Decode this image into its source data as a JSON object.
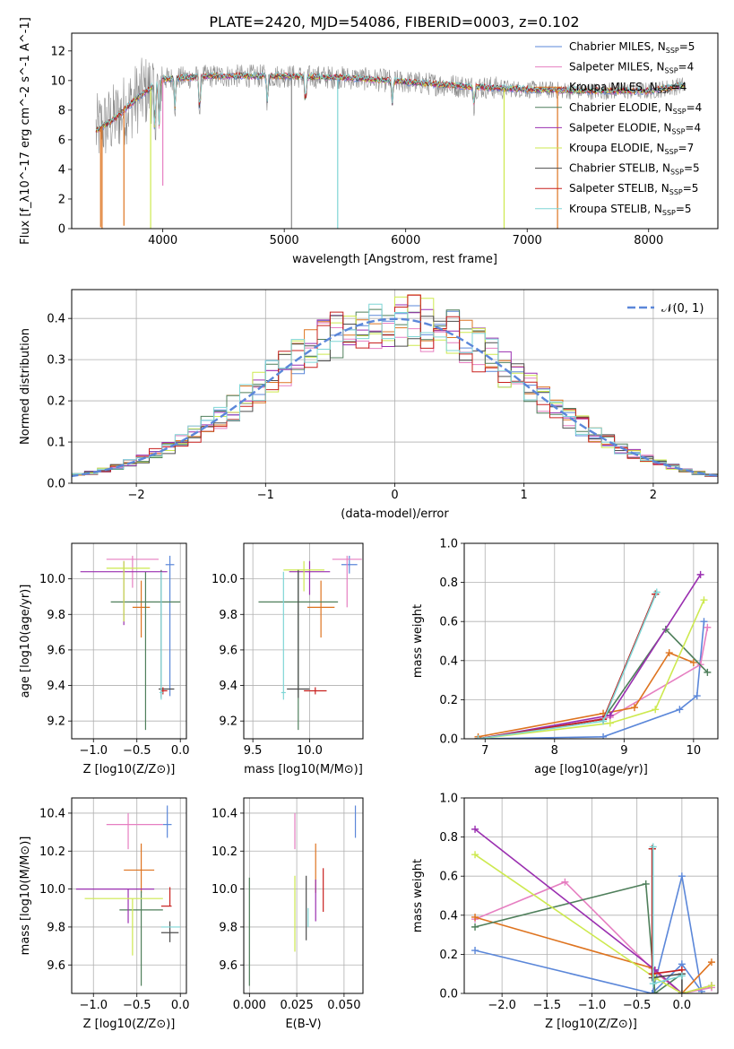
{
  "figure": {
    "title": "PLATE=2420, MJD=54086, FIBERID=0003, z=0.102"
  },
  "colors": {
    "Chabrier MILES": "#5b87d9",
    "Salpeter MILES": "#e67fc1",
    "Kroupa MILES": "#de7420",
    "Chabrier ELODIE": "#4f7f5b",
    "Salpeter ELODIE": "#9a2fb0",
    "Kroupa ELODIE": "#cde94f",
    "Chabrier STELIB": "#4d4d4d",
    "Salpeter STELIB": "#c8201e",
    "Kroupa STELIB": "#7fd6d6",
    "data": "#8a8a8a",
    "normal_curve": "#5b87d9"
  },
  "chart_data": [
    {
      "id": "spectrum",
      "type": "line",
      "xlabel": "wavelength [Angstrom, rest frame]",
      "ylabel": "Flux [f_λ10^-17 erg cm^-2 s^-1 A^-1]",
      "xlim": [
        3250,
        8570
      ],
      "ylim": [
        0,
        13.2
      ],
      "xticks": [
        4000,
        5000,
        6000,
        7000,
        8000
      ],
      "yticks": [
        0,
        2,
        4,
        6,
        8,
        10,
        12
      ],
      "legend_position": "top-right",
      "legend": [
        {
          "base": "Chabrier MILES, N",
          "sub": "SSP",
          "tail": "=5"
        },
        {
          "base": "Salpeter MILES, N",
          "sub": "SSP",
          "tail": "=4"
        },
        {
          "base": "Kroupa MILES, N",
          "sub": "SSP",
          "tail": "=4"
        },
        {
          "base": "Chabrier ELODIE, N",
          "sub": "SSP",
          "tail": "=4"
        },
        {
          "base": "Salpeter ELODIE, N",
          "sub": "SSP",
          "tail": "=4"
        },
        {
          "base": "Kroupa ELODIE, N",
          "sub": "SSP",
          "tail": "=7"
        },
        {
          "base": "Chabrier STELIB, N",
          "sub": "SSP",
          "tail": "=5"
        },
        {
          "base": "Salpeter STELIB, N",
          "sub": "SSP",
          "tail": "=5"
        },
        {
          "base": "Kroupa STELIB, N",
          "sub": "SSP",
          "tail": "=5"
        }
      ],
      "continuum": {
        "x": [
          3450,
          3600,
          3800,
          4000,
          4400,
          5000,
          5500,
          6000,
          6500,
          7000,
          7500,
          8000,
          8300
        ],
        "y": [
          6.6,
          7.4,
          8.9,
          10.1,
          10.3,
          10.3,
          10.2,
          9.9,
          9.6,
          9.4,
          9.3,
          9.3,
          9.7
        ]
      },
      "absorption_lines": [
        {
          "x": 3934,
          "depth": 3.5
        },
        {
          "x": 3969,
          "depth": 3.0
        },
        {
          "x": 4101,
          "depth": 2.0
        },
        {
          "x": 4304,
          "depth": 2.5
        },
        {
          "x": 4861,
          "depth": 1.8
        },
        {
          "x": 5175,
          "depth": 2.0
        },
        {
          "x": 5890,
          "depth": 1.5
        },
        {
          "x": 6563,
          "depth": 1.2
        }
      ],
      "spikes": [
        {
          "x": 3488,
          "y": 0.1
        },
        {
          "x": 3500,
          "y": 0.0
        },
        {
          "x": 3680,
          "y": 0.2
        },
        {
          "x": 3900,
          "y": 0.0
        },
        {
          "x": 4000,
          "y": 2.9
        },
        {
          "x": 5440,
          "y": 0.0
        },
        {
          "x": 5060,
          "y": 0.0
        },
        {
          "x": 6810,
          "y": 0.0
        },
        {
          "x": 7250,
          "y": 0.0
        }
      ]
    },
    {
      "id": "residuals",
      "type": "line",
      "xlabel": "(data-model)/error",
      "ylabel": "Normed distribution",
      "xlim": [
        -2.5,
        2.5
      ],
      "ylim": [
        0,
        0.47
      ],
      "xticks": [
        -2,
        -1,
        0,
        1,
        2
      ],
      "yticks": [
        0.0,
        0.1,
        0.2,
        0.3,
        0.4
      ],
      "grid": true,
      "legend_position": "top-right",
      "legend": "𝒩(0, 1)",
      "bin_width": 0.1
    },
    {
      "id": "age_vs_Z",
      "type": "scatter",
      "xlabel": "Z [log10(Z/Z⊙)]",
      "ylabel": "age  [log10(age/yr)]",
      "xlim": [
        -1.25,
        0.07
      ],
      "ylim": [
        9.1,
        10.2
      ],
      "xticks": [
        -1.0,
        -0.5,
        0.0
      ],
      "yticks": [
        9.2,
        9.4,
        9.6,
        9.8,
        10.0
      ],
      "grid": true,
      "points": [
        {
          "model": "Chabrier MILES",
          "x": -0.12,
          "xerr": [
            0.05,
            0.05
          ],
          "y": 10.08,
          "yerr": [
            0.74,
            0.05
          ]
        },
        {
          "model": "Salpeter MILES",
          "x": -0.55,
          "xerr": [
            0.3,
            0.3
          ],
          "y": 10.11,
          "yerr": [
            0.16,
            0.02
          ]
        },
        {
          "model": "Kroupa MILES",
          "x": -0.45,
          "xerr": [
            0.1,
            0.1
          ],
          "y": 9.84,
          "yerr": [
            0.17,
            0.15
          ]
        },
        {
          "model": "Chabrier ELODIE",
          "x": -0.4,
          "xerr": [
            0.4,
            0.4
          ],
          "y": 9.87,
          "yerr": [
            0.72,
            0.17
          ]
        },
        {
          "model": "Salpeter ELODIE",
          "x": -0.65,
          "xerr": [
            0.5,
            0.5
          ],
          "y": 10.04,
          "yerr": [
            0.3,
            0.06
          ]
        },
        {
          "model": "Kroupa ELODIE",
          "x": -0.65,
          "xerr": [
            0.2,
            0.3
          ],
          "y": 10.06,
          "yerr": [
            0.3,
            0.04
          ]
        },
        {
          "model": "Chabrier STELIB",
          "x": -0.22,
          "xerr": [
            0.03,
            0.15
          ],
          "y": 9.38,
          "yerr": [
            0.05,
            0.67
          ]
        },
        {
          "model": "Salpeter STELIB",
          "x": -0.2,
          "xerr": [
            0.02,
            0.05
          ],
          "y": 9.37,
          "yerr": [
            0.02,
            0.02
          ]
        },
        {
          "model": "Kroupa STELIB",
          "x": -0.22,
          "xerr": [
            0.02,
            0.02
          ],
          "y": 9.36,
          "yerr": [
            0.04,
            0.68
          ]
        }
      ]
    },
    {
      "id": "age_vs_mass",
      "type": "scatter",
      "xlabel": "mass [log10(M/M⊙)]",
      "ylabel": "",
      "xlim": [
        9.42,
        10.47
      ],
      "ylim": [
        9.1,
        10.2
      ],
      "xticks": [
        9.5,
        10.0
      ],
      "yticks": [
        9.2,
        9.4,
        9.6,
        9.8,
        10.0
      ],
      "grid": true,
      "points": [
        {
          "model": "Chabrier MILES",
          "x": 10.35,
          "xerr": [
            0.07,
            0.07
          ],
          "y": 10.08,
          "yerr": [
            0.05,
            0.05
          ]
        },
        {
          "model": "Salpeter MILES",
          "x": 10.33,
          "xerr": [
            0.13,
            0.13
          ],
          "y": 10.11,
          "yerr": [
            0.27,
            0.02
          ]
        },
        {
          "model": "Kroupa MILES",
          "x": 10.1,
          "xerr": [
            0.12,
            0.12
          ],
          "y": 9.84,
          "yerr": [
            0.17,
            0.15
          ]
        },
        {
          "model": "Chabrier ELODIE",
          "x": 9.9,
          "xerr": [
            0.35,
            0.35
          ],
          "y": 9.87,
          "yerr": [
            0.72,
            0.17
          ]
        },
        {
          "model": "Salpeter ELODIE",
          "x": 10.0,
          "xerr": [
            0.18,
            0.18
          ],
          "y": 10.04,
          "yerr": [
            0.13,
            0.06
          ]
        },
        {
          "model": "Kroupa ELODIE",
          "x": 9.95,
          "xerr": [
            0.18,
            0.18
          ],
          "y": 10.05,
          "yerr": [
            0.12,
            0.05
          ]
        },
        {
          "model": "Chabrier STELIB",
          "x": 9.9,
          "xerr": [
            0.1,
            0.1
          ],
          "y": 9.38,
          "yerr": [
            0.05,
            0.67
          ]
        },
        {
          "model": "Salpeter STELIB",
          "x": 10.05,
          "xerr": [
            0.1,
            0.1
          ],
          "y": 9.37,
          "yerr": [
            0.02,
            0.02
          ]
        },
        {
          "model": "Kroupa STELIB",
          "x": 9.77,
          "xerr": [
            0.02,
            0.02
          ],
          "y": 9.36,
          "yerr": [
            0.04,
            0.68
          ]
        }
      ]
    },
    {
      "id": "massweight_vs_age",
      "type": "line",
      "xlabel": "age  [log10(age/yr)]",
      "ylabel": "mass weight",
      "xlim": [
        6.7,
        10.35
      ],
      "ylim": [
        0,
        1.0
      ],
      "xticks": [
        7,
        8,
        9,
        10
      ],
      "yticks": [
        0.0,
        0.2,
        0.4,
        0.6,
        0.8,
        1.0
      ],
      "grid": true,
      "series": [
        {
          "model": "Chabrier MILES",
          "x": [
            6.9,
            8.7,
            9.8,
            10.05,
            10.15
          ],
          "y": [
            0.0,
            0.01,
            0.15,
            0.22,
            0.6
          ]
        },
        {
          "model": "Salpeter MILES",
          "x": [
            6.9,
            8.8,
            10.1,
            10.2
          ],
          "y": [
            0.0,
            0.11,
            0.38,
            0.57
          ]
        },
        {
          "model": "Kroupa MILES",
          "x": [
            6.9,
            8.7,
            9.15,
            9.65,
            10.0
          ],
          "y": [
            0.01,
            0.13,
            0.16,
            0.44,
            0.39
          ]
        },
        {
          "model": "Chabrier ELODIE",
          "x": [
            6.9,
            8.7,
            9.6,
            10.2
          ],
          "y": [
            0.0,
            0.1,
            0.56,
            0.34
          ]
        },
        {
          "model": "Salpeter ELODIE",
          "x": [
            6.9,
            8.8,
            10.1
          ],
          "y": [
            0.0,
            0.12,
            0.84
          ]
        },
        {
          "model": "Kroupa ELODIE",
          "x": [
            6.9,
            8.8,
            9.45,
            10.15
          ],
          "y": [
            0.0,
            0.08,
            0.15,
            0.71
          ]
        },
        {
          "model": "Chabrier STELIB",
          "x": [
            6.9,
            8.7,
            9.45
          ],
          "y": [
            0.0,
            0.1,
            0.74
          ]
        },
        {
          "model": "Salpeter STELIB",
          "x": [
            6.9,
            8.7,
            9.45
          ],
          "y": [
            0.0,
            0.1,
            0.74
          ]
        },
        {
          "model": "Kroupa STELIB",
          "x": [
            6.9,
            8.7,
            9.47
          ],
          "y": [
            0.0,
            0.09,
            0.75
          ]
        }
      ]
    },
    {
      "id": "mass_vs_Z",
      "type": "scatter",
      "xlabel": "Z [log10(Z/Z⊙)]",
      "ylabel": "mass [log10(M/M⊙)]",
      "xlim": [
        -1.25,
        0.07
      ],
      "ylim": [
        9.45,
        10.48
      ],
      "xticks": [
        -1.0,
        -0.5,
        0.0
      ],
      "yticks": [
        9.6,
        9.8,
        10.0,
        10.2,
        10.4
      ],
      "grid": true,
      "points": [
        {
          "model": "Chabrier MILES",
          "x": -0.15,
          "xerr": [
            0.05,
            0.05
          ],
          "y": 10.34,
          "yerr": [
            0.07,
            0.1
          ]
        },
        {
          "model": "Salpeter MILES",
          "x": -0.6,
          "xerr": [
            0.25,
            0.4
          ],
          "y": 10.34,
          "yerr": [
            0.13,
            0.06
          ]
        },
        {
          "model": "Kroupa MILES",
          "x": -0.45,
          "xerr": [
            0.2,
            0.15
          ],
          "y": 10.1,
          "yerr": [
            0.12,
            0.14
          ]
        },
        {
          "model": "Chabrier ELODIE",
          "x": -0.45,
          "xerr": [
            0.25,
            0.25
          ],
          "y": 9.89,
          "yerr": [
            0.4,
            0.1
          ]
        },
        {
          "model": "Salpeter ELODIE",
          "x": -0.6,
          "xerr": [
            0.6,
            0.3
          ],
          "y": 10.0,
          "yerr": [
            0.18,
            0.0
          ]
        },
        {
          "model": "Kroupa ELODIE",
          "x": -0.55,
          "xerr": [
            0.55,
            0.35
          ],
          "y": 9.95,
          "yerr": [
            0.3,
            0.0
          ]
        },
        {
          "model": "Chabrier STELIB",
          "x": -0.12,
          "xerr": [
            0.1,
            0.1
          ],
          "y": 9.77,
          "yerr": [
            0.05,
            0.06
          ]
        },
        {
          "model": "Salpeter STELIB",
          "x": -0.12,
          "xerr": [
            0.1,
            0.02
          ],
          "y": 9.91,
          "yerr": [
            0.0,
            0.1
          ]
        },
        {
          "model": "Kroupa STELIB",
          "x": -0.12,
          "xerr": [
            0.1,
            0.12
          ],
          "y": 9.8,
          "yerr": [
            0.0,
            0.0
          ]
        }
      ]
    },
    {
      "id": "mass_vs_ebv",
      "type": "scatter",
      "xlabel": "E(B-V)",
      "ylabel": "",
      "xlim": [
        -0.003,
        0.06
      ],
      "ylim": [
        9.45,
        10.48
      ],
      "xticks": [
        0.0,
        0.025,
        0.05
      ],
      "xticklabels": [
        "0.000",
        "0.025",
        "0.050"
      ],
      "yticks": [
        9.6,
        9.8,
        10.0,
        10.2,
        10.4
      ],
      "grid": true,
      "points": [
        {
          "model": "Chabrier MILES",
          "x": 0.056,
          "y": 10.34,
          "yerr": [
            0.07,
            0.1
          ]
        },
        {
          "model": "Salpeter MILES",
          "x": 0.024,
          "y": 10.34,
          "yerr": [
            0.13,
            0.06
          ]
        },
        {
          "model": "Kroupa MILES",
          "x": 0.035,
          "y": 10.1,
          "yerr": [
            0.12,
            0.14
          ]
        },
        {
          "model": "Chabrier ELODIE",
          "x": 0.0,
          "y": 9.77,
          "yerr": [
            0.28,
            0.29
          ]
        },
        {
          "model": "Salpeter ELODIE",
          "x": 0.035,
          "y": 9.95,
          "yerr": [
            0.12,
            0.1
          ]
        },
        {
          "model": "Kroupa ELODIE",
          "x": 0.024,
          "y": 9.97,
          "yerr": [
            0.3,
            0.1
          ]
        },
        {
          "model": "Chabrier STELIB",
          "x": 0.03,
          "y": 9.9,
          "yerr": [
            0.17,
            0.17
          ]
        },
        {
          "model": "Salpeter STELIB",
          "x": 0.039,
          "y": 10.0,
          "yerr": [
            0.12,
            0.11
          ]
        },
        {
          "model": "Kroupa STELIB",
          "x": 0.031,
          "y": 9.85,
          "yerr": [
            0.05,
            0.05
          ]
        }
      ]
    },
    {
      "id": "massweight_vs_Z",
      "type": "line",
      "xlabel": "Z [log10(Z/Z⊙)]",
      "ylabel": "mass weight",
      "xlim": [
        -2.42,
        0.4
      ],
      "ylim": [
        0,
        1.0
      ],
      "xticks": [
        -2.0,
        -1.5,
        -1.0,
        -0.5,
        0.0
      ],
      "yticks": [
        0.0,
        0.2,
        0.4,
        0.6,
        0.8,
        1.0
      ],
      "grid": true,
      "series": [
        {
          "model": "Chabrier MILES",
          "x": [
            -2.3,
            -0.33,
            0.0,
            0.22,
            0.0,
            -0.33
          ],
          "y": [
            0.22,
            0.0,
            0.6,
            0.01,
            0.15,
            0.0
          ]
        },
        {
          "model": "Salpeter MILES",
          "x": [
            -2.3,
            -1.3,
            -0.3,
            0.0,
            0.33
          ],
          "y": [
            0.38,
            0.57,
            0.11,
            0.0,
            0.03
          ]
        },
        {
          "model": "Kroupa MILES",
          "x": [
            -2.3,
            -0.33,
            0.0,
            0.33
          ],
          "y": [
            0.39,
            0.13,
            0.0,
            0.16
          ]
        },
        {
          "model": "Chabrier ELODIE",
          "x": [
            -2.3,
            -0.4,
            -0.3,
            0.0
          ],
          "y": [
            0.34,
            0.56,
            0.0,
            0.1
          ]
        },
        {
          "model": "Salpeter ELODIE",
          "x": [
            -2.3,
            -0.3,
            0.0,
            0.33
          ],
          "y": [
            0.84,
            0.12,
            0.0,
            0.04
          ]
        },
        {
          "model": "Kroupa ELODIE",
          "x": [
            -2.3,
            -0.3,
            0.0,
            0.33
          ],
          "y": [
            0.71,
            0.08,
            0.0,
            0.04
          ]
        },
        {
          "model": "Chabrier STELIB",
          "x": [
            -0.33,
            -0.33,
            0.0,
            0.0
          ],
          "y": [
            0.74,
            0.08,
            0.1,
            0.0
          ]
        },
        {
          "model": "Salpeter STELIB",
          "x": [
            -0.33,
            -0.33,
            0.0
          ],
          "y": [
            0.74,
            0.1,
            0.12
          ]
        },
        {
          "model": "Kroupa STELIB",
          "x": [
            -0.32,
            -0.32,
            0.0
          ],
          "y": [
            0.75,
            0.05,
            0.09
          ]
        }
      ]
    }
  ]
}
